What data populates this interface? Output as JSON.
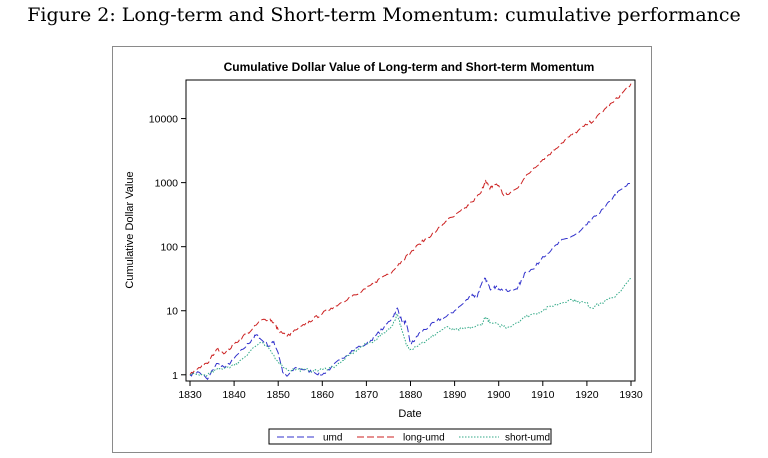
{
  "figure_caption": "Figure 2: Long-term and Short-term Momentum: cumulative performance",
  "chart_data": {
    "type": "line",
    "title": "Cumulative Dollar Value of Long-term and Short-term Momentum",
    "xlabel": "Date",
    "ylabel": "Cumulative Dollar Value",
    "xlim": [
      1830,
      1930
    ],
    "ylim": [
      0.8,
      40000
    ],
    "yscale": "log",
    "x_ticks": [
      "1830",
      "1840",
      "1850",
      "1860",
      "1870",
      "1880",
      "1890",
      "1900",
      "1910",
      "1920",
      "1930"
    ],
    "y_ticks": [
      1,
      10,
      100,
      1000,
      10000
    ],
    "y_tick_labels": [
      "1",
      "10",
      "100",
      "1000",
      "10000"
    ],
    "grid": false,
    "legend_position": "bottom",
    "series": [
      {
        "name": "umd",
        "color": "#3333cc",
        "dash": "dashed",
        "points": [
          [
            1830,
            1.0
          ],
          [
            1832,
            1.1
          ],
          [
            1834,
            0.85
          ],
          [
            1836,
            1.5
          ],
          [
            1838,
            1.3
          ],
          [
            1840,
            1.8
          ],
          [
            1842,
            2.5
          ],
          [
            1844,
            3.5
          ],
          [
            1845,
            4.2
          ],
          [
            1846,
            3.6
          ],
          [
            1848,
            2.8
          ],
          [
            1849,
            3.3
          ],
          [
            1850,
            2.2
          ],
          [
            1851,
            1.1
          ],
          [
            1852,
            0.95
          ],
          [
            1854,
            1.3
          ],
          [
            1856,
            1.2
          ],
          [
            1858,
            1.1
          ],
          [
            1860,
            1.0
          ],
          [
            1862,
            1.3
          ],
          [
            1864,
            1.7
          ],
          [
            1866,
            2.2
          ],
          [
            1868,
            2.7
          ],
          [
            1870,
            3.0
          ],
          [
            1872,
            4.0
          ],
          [
            1874,
            5.5
          ],
          [
            1876,
            8.0
          ],
          [
            1877,
            11.0
          ],
          [
            1878,
            7.0
          ],
          [
            1879,
            6.5
          ],
          [
            1880,
            3.0
          ],
          [
            1881,
            3.5
          ],
          [
            1882,
            4.5
          ],
          [
            1884,
            5.5
          ],
          [
            1886,
            7.0
          ],
          [
            1888,
            8.0
          ],
          [
            1890,
            10.0
          ],
          [
            1892,
            13.0
          ],
          [
            1894,
            18.0
          ],
          [
            1895,
            16.0
          ],
          [
            1896,
            25.0
          ],
          [
            1897,
            32.0
          ],
          [
            1898,
            22.0
          ],
          [
            1899,
            24.0
          ],
          [
            1900,
            22.0
          ],
          [
            1902,
            20.0
          ],
          [
            1904,
            22.0
          ],
          [
            1905,
            28.0
          ],
          [
            1906,
            40.0
          ],
          [
            1908,
            45.0
          ],
          [
            1910,
            70.0
          ],
          [
            1912,
            90.0
          ],
          [
            1914,
            120.0
          ],
          [
            1916,
            140.0
          ],
          [
            1918,
            160.0
          ],
          [
            1920,
            220.0
          ],
          [
            1922,
            300.0
          ],
          [
            1924,
            400.0
          ],
          [
            1926,
            600.0
          ],
          [
            1928,
            800.0
          ],
          [
            1930,
            1000.0
          ]
        ]
      },
      {
        "name": "long-umd",
        "color": "#cc2222",
        "dash": "dashed",
        "points": [
          [
            1830,
            1.0
          ],
          [
            1832,
            1.3
          ],
          [
            1834,
            1.5
          ],
          [
            1836,
            2.5
          ],
          [
            1838,
            2.2
          ],
          [
            1840,
            3.0
          ],
          [
            1842,
            4.0
          ],
          [
            1844,
            5.0
          ],
          [
            1846,
            7.0
          ],
          [
            1848,
            7.5
          ],
          [
            1849,
            6.5
          ],
          [
            1850,
            5.0
          ],
          [
            1852,
            4.0
          ],
          [
            1854,
            5.0
          ],
          [
            1856,
            6.0
          ],
          [
            1858,
            7.5
          ],
          [
            1860,
            9.0
          ],
          [
            1862,
            11.0
          ],
          [
            1864,
            13.0
          ],
          [
            1866,
            16.0
          ],
          [
            1868,
            18.0
          ],
          [
            1870,
            22.0
          ],
          [
            1872,
            28.0
          ],
          [
            1874,
            35.0
          ],
          [
            1876,
            42.0
          ],
          [
            1878,
            60.0
          ],
          [
            1880,
            80.0
          ],
          [
            1882,
            110.0
          ],
          [
            1884,
            140.0
          ],
          [
            1886,
            180.0
          ],
          [
            1888,
            250.0
          ],
          [
            1890,
            300.0
          ],
          [
            1892,
            380.0
          ],
          [
            1894,
            500.0
          ],
          [
            1896,
            700.0
          ],
          [
            1897,
            1100.0
          ],
          [
            1898,
            800.0
          ],
          [
            1899,
            950.0
          ],
          [
            1900,
            900.0
          ],
          [
            1901,
            650.0
          ],
          [
            1902,
            650.0
          ],
          [
            1904,
            800.0
          ],
          [
            1906,
            1200.0
          ],
          [
            1908,
            1700.0
          ],
          [
            1910,
            2300.0
          ],
          [
            1912,
            3000.0
          ],
          [
            1914,
            4000.0
          ],
          [
            1916,
            5200.0
          ],
          [
            1918,
            6500.0
          ],
          [
            1920,
            8000.0
          ],
          [
            1922,
            10000.0
          ],
          [
            1924,
            14000.0
          ],
          [
            1926,
            18000.0
          ],
          [
            1928,
            25000.0
          ],
          [
            1930,
            35000.0
          ]
        ]
      },
      {
        "name": "short-umd",
        "color": "#33aa88",
        "dash": "dotted",
        "points": [
          [
            1830,
            1.0
          ],
          [
            1832,
            1.0
          ],
          [
            1834,
            1.0
          ],
          [
            1836,
            1.2
          ],
          [
            1838,
            1.3
          ],
          [
            1840,
            1.4
          ],
          [
            1842,
            1.8
          ],
          [
            1844,
            2.5
          ],
          [
            1846,
            3.2
          ],
          [
            1848,
            2.5
          ],
          [
            1850,
            1.6
          ],
          [
            1852,
            1.2
          ],
          [
            1854,
            1.2
          ],
          [
            1856,
            1.2
          ],
          [
            1858,
            1.15
          ],
          [
            1860,
            1.2
          ],
          [
            1862,
            1.3
          ],
          [
            1864,
            1.5
          ],
          [
            1866,
            2.0
          ],
          [
            1868,
            2.5
          ],
          [
            1870,
            3.0
          ],
          [
            1872,
            3.5
          ],
          [
            1874,
            4.5
          ],
          [
            1876,
            6.0
          ],
          [
            1877,
            9.0
          ],
          [
            1878,
            5.0
          ],
          [
            1879,
            3.0
          ],
          [
            1880,
            2.5
          ],
          [
            1882,
            3.0
          ],
          [
            1884,
            3.5
          ],
          [
            1886,
            4.5
          ],
          [
            1888,
            5.5
          ],
          [
            1890,
            5.0
          ],
          [
            1892,
            5.2
          ],
          [
            1894,
            5.5
          ],
          [
            1896,
            6.0
          ],
          [
            1897,
            8.0
          ],
          [
            1898,
            6.5
          ],
          [
            1900,
            6.0
          ],
          [
            1902,
            5.5
          ],
          [
            1904,
            6.5
          ],
          [
            1906,
            8.0
          ],
          [
            1908,
            9.0
          ],
          [
            1910,
            10.0
          ],
          [
            1912,
            12.0
          ],
          [
            1914,
            13.0
          ],
          [
            1916,
            15.0
          ],
          [
            1918,
            14.0
          ],
          [
            1920,
            13.0
          ],
          [
            1921,
            11.0
          ],
          [
            1922,
            12.0
          ],
          [
            1924,
            14.0
          ],
          [
            1926,
            16.0
          ],
          [
            1928,
            22.0
          ],
          [
            1930,
            32.0
          ]
        ]
      }
    ]
  }
}
